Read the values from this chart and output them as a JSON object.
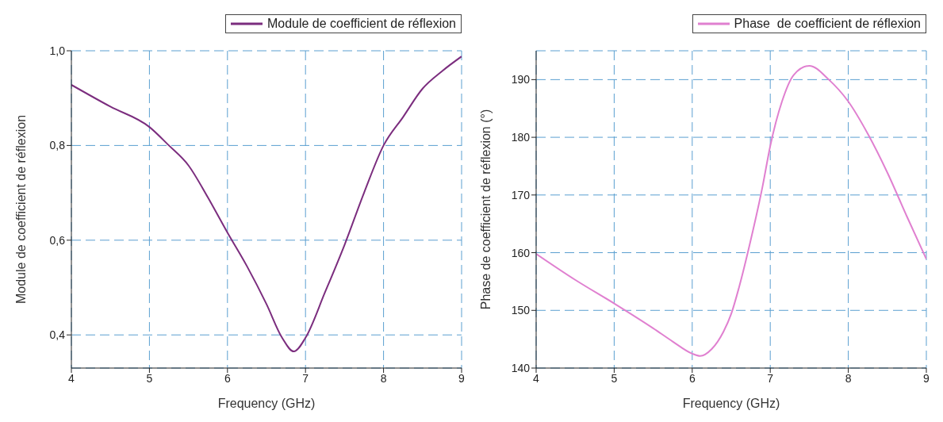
{
  "chart_data": [
    {
      "type": "line",
      "xlabel": "Frequency (GHz)",
      "ylabel": "Module de coefficient de réflexion",
      "xlim": [
        4,
        9
      ],
      "xticks": [
        4,
        5,
        6,
        7,
        8,
        9
      ],
      "ylim": [
        0.33,
        1.0
      ],
      "yticks": [
        {
          "value": 0.4,
          "label": "0,4"
        },
        {
          "value": 0.6,
          "label": "0,6"
        },
        {
          "value": 0.8,
          "label": "0,8"
        },
        {
          "value": 1.0,
          "label": "1,0"
        }
      ],
      "grid": true,
      "legend": "top right",
      "marker": "none",
      "line_style": "solid",
      "series": [
        {
          "name": "Module de coefficient de réflexion",
          "color": "#7b2d7e",
          "x": [
            4,
            4.5,
            5,
            5.25,
            5.5,
            5.75,
            6,
            6.25,
            6.5,
            6.7,
            6.85,
            7,
            7.25,
            7.5,
            7.75,
            8,
            8.25,
            8.5,
            8.75,
            9
          ],
          "values": [
            0.928,
            0.882,
            0.839,
            0.8,
            0.758,
            0.69,
            0.616,
            0.545,
            0.465,
            0.394,
            0.365,
            0.394,
            0.49,
            0.59,
            0.7,
            0.8,
            0.86,
            0.92,
            0.957,
            0.988
          ]
        }
      ]
    },
    {
      "type": "line",
      "xlabel": "Frequency (GHz)",
      "ylabel": "Phase  de coefficient de réflexion (°)",
      "xlim": [
        4,
        9
      ],
      "xticks": [
        4,
        5,
        6,
        7,
        8,
        9
      ],
      "ylim": [
        140,
        195
      ],
      "yticks": [
        140,
        150,
        160,
        170,
        180,
        190
      ],
      "grid": true,
      "legend": "top right",
      "marker": "none",
      "line_style": "solid",
      "series": [
        {
          "name": "Phase  de coefficient de réflexion",
          "color": "#e080d0",
          "x": [
            4,
            4.5,
            5,
            5.5,
            5.75,
            6,
            6.1,
            6.25,
            6.4,
            6.5,
            6.6,
            6.75,
            6.9,
            7,
            7.15,
            7.3,
            7.5,
            7.75,
            8,
            8.25,
            8.5,
            8.75,
            9
          ],
          "values": [
            159.8,
            155.3,
            151.2,
            146.9,
            144.6,
            142.5,
            142.1,
            143.3,
            146.3,
            149.4,
            154,
            162.2,
            171.4,
            178.5,
            186.2,
            190.8,
            192.4,
            190,
            186.2,
            180.6,
            173.9,
            166.3,
            158.9
          ]
        }
      ]
    }
  ]
}
